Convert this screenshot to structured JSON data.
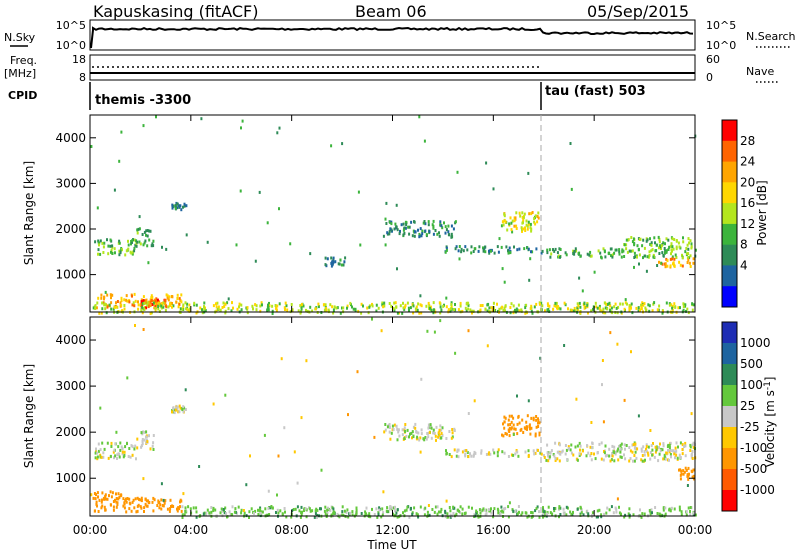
{
  "header": {
    "station": "Kapuskasing (fitACF)",
    "beam": "Beam 06",
    "date": "05/Sep/2015"
  },
  "strips": {
    "nsky_label": "N.Sky",
    "nsky_ticks": [
      "10^5",
      "10^0"
    ],
    "nsearch_label": "N.Search",
    "nsearch_ticks": [
      "10^5",
      "10^0"
    ],
    "freq_label_1": "Freq.",
    "freq_label_2": "[MHz]",
    "freq_ticks": [
      "18",
      "8"
    ],
    "nave_label": "Nave",
    "nave_ticks": [
      "60",
      "0"
    ],
    "cpid_label": "CPID",
    "cpid_segments": [
      {
        "start_hour": 0,
        "label": "themis -3300"
      },
      {
        "start_hour": 18,
        "label": "tau (fast) 503"
      }
    ]
  },
  "chart_data": [
    {
      "type": "heatmap",
      "quantity": "Power",
      "ylabel": "Slant Range [km]",
      "xlabel": "",
      "xlim_hours": [
        0,
        24
      ],
      "ylim_km": [
        180,
        4500
      ],
      "yticks": [
        1000,
        2000,
        3000,
        4000
      ],
      "colorbar_label": "Power [dB]",
      "colorbar_ticks": [
        "28",
        "24",
        "20",
        "16",
        "12",
        "8",
        "4"
      ],
      "colorbar_colors": [
        "#ff0000",
        "#ff6400",
        "#ffa500",
        "#ffd700",
        "#b4e61e",
        "#3cb43c",
        "#2e8b57",
        "#1e64a0",
        "#0000ff"
      ],
      "echo_regions": [
        {
          "t0": 0.1,
          "t1": 1.8,
          "r0": 1450,
          "r1": 1800,
          "dB": 10
        },
        {
          "t0": 1.8,
          "t1": 2.5,
          "r0": 1650,
          "r1": 2050,
          "dB": 9
        },
        {
          "t0": 0.1,
          "t1": 3.6,
          "r0": 300,
          "r1": 600,
          "dB": 22
        },
        {
          "t0": 2.0,
          "t1": 3.0,
          "r0": 300,
          "r1": 480,
          "dB": 27
        },
        {
          "t0": 0.1,
          "t1": 24,
          "r0": 180,
          "r1": 420,
          "dB": 14
        },
        {
          "t0": 3.2,
          "t1": 3.8,
          "r0": 2450,
          "r1": 2600,
          "dB": 5
        },
        {
          "t0": 11.6,
          "t1": 14.5,
          "r0": 1850,
          "r1": 2200,
          "dB": 6
        },
        {
          "t0": 14.0,
          "t1": 18.0,
          "r0": 1500,
          "r1": 1650,
          "dB": 5
        },
        {
          "t0": 16.3,
          "t1": 17.8,
          "r0": 1950,
          "r1": 2400,
          "dB": 16
        },
        {
          "t0": 18.0,
          "t1": 21.0,
          "r0": 1400,
          "r1": 1600,
          "dB": 9
        },
        {
          "t0": 21.0,
          "t1": 24.0,
          "r0": 1400,
          "r1": 1850,
          "dB": 11
        },
        {
          "t0": 22.5,
          "t1": 24.0,
          "r0": 1200,
          "r1": 1400,
          "dB": 22
        },
        {
          "t0": 9.3,
          "t1": 10.1,
          "r0": 1200,
          "r1": 1400,
          "dB": 5
        }
      ]
    },
    {
      "type": "heatmap",
      "quantity": "Velocity",
      "ylabel": "Slant Range [km]",
      "xlabel": "Time UT",
      "xlim_hours": [
        0,
        24
      ],
      "ylim_km": [
        180,
        4500
      ],
      "yticks": [
        1000,
        2000,
        3000,
        4000
      ],
      "xticks": [
        "00:00",
        "04:00",
        "08:00",
        "12:00",
        "16:00",
        "20:00",
        "00:00"
      ],
      "colorbar_label": "Velocity [m s^-1]",
      "colorbar_ticks": [
        "1000",
        "500",
        "100",
        "25",
        "-25",
        "-100",
        "-500",
        "-1000"
      ],
      "colorbar_colors": [
        "#1e2db4",
        "#1e64a0",
        "#2e8b57",
        "#64c83c",
        "#c8c8c8",
        "#ffc800",
        "#ff9600",
        "#ff5a00",
        "#ff0000"
      ],
      "echo_regions": [
        {
          "t0": 0.1,
          "t1": 1.8,
          "r0": 1450,
          "r1": 1800,
          "vel": 0
        },
        {
          "t0": 1.8,
          "t1": 2.5,
          "r0": 1650,
          "r1": 2050,
          "vel": 0
        },
        {
          "t0": 0.1,
          "t1": 1.2,
          "r0": 550,
          "r1": 750,
          "vel": -400
        },
        {
          "t0": 0.1,
          "t1": 3.6,
          "r0": 300,
          "r1": 600,
          "vel": -300
        },
        {
          "t0": 3.6,
          "t1": 24,
          "r0": 180,
          "r1": 420,
          "vel": 60
        },
        {
          "t0": 3.2,
          "t1": 3.8,
          "r0": 2450,
          "r1": 2600,
          "vel": 0
        },
        {
          "t0": 11.6,
          "t1": 14.5,
          "r0": 1850,
          "r1": 2200,
          "vel": 0
        },
        {
          "t0": 14.0,
          "t1": 18.0,
          "r0": 1500,
          "r1": 1650,
          "vel": 0
        },
        {
          "t0": 16.3,
          "t1": 17.8,
          "r0": 1950,
          "r1": 2400,
          "vel": -200
        },
        {
          "t0": 18.0,
          "t1": 24.0,
          "r0": 1400,
          "r1": 1800,
          "vel": 0
        },
        {
          "t0": 23.3,
          "t1": 24.0,
          "r0": 1000,
          "r1": 1250,
          "vel": -200
        }
      ]
    }
  ]
}
